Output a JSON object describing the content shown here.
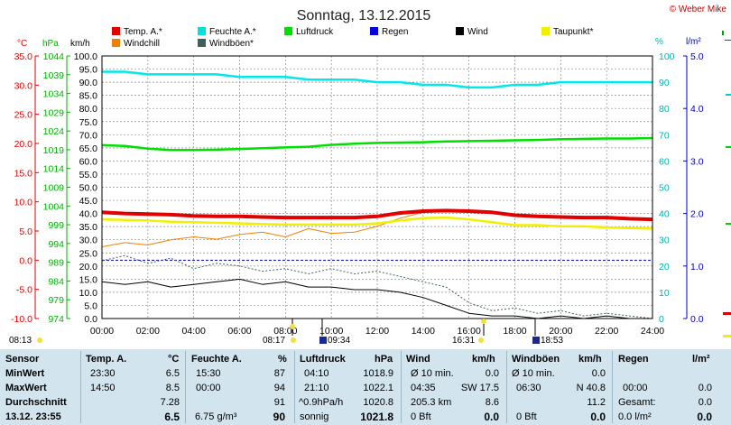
{
  "header": {
    "title": "Sonntag, 13.12.2015",
    "copyright": "© Weber Mike"
  },
  "legend": [
    {
      "label": "Temp. A.*",
      "color": "#e00000"
    },
    {
      "label": "Feuchte A.*",
      "color": "#00e0e0"
    },
    {
      "label": "Luftdruck",
      "color": "#00e000"
    },
    {
      "label": "Regen",
      "color": "#0000e0"
    },
    {
      "label": "Wind",
      "color": "#000000"
    },
    {
      "label": "Taupunkt*",
      "color": "#f0f000"
    },
    {
      "label": "Windchill",
      "color": "#f08000"
    },
    {
      "label": "Windböen*",
      "color": "#406060"
    }
  ],
  "axes": {
    "temp_unit": "°C",
    "press_unit": "hPa",
    "wind_unit": "km/h",
    "hum_unit": "%",
    "rain_unit": "l/m²",
    "temp_ticks": [
      "35.0",
      "30.0",
      "25.0",
      "20.0",
      "15.0",
      "10.0",
      "5.0",
      "0.0",
      "-5.0",
      "-10.0"
    ],
    "press_ticks": [
      "1044",
      "1039",
      "1034",
      "1029",
      "1024",
      "1019",
      "1014",
      "1009",
      "1004",
      "999",
      "994",
      "989",
      "984",
      "979",
      "974"
    ],
    "wind_ticks": [
      "100.0",
      "95.0",
      "90.0",
      "85.0",
      "80.0",
      "75.0",
      "70.0",
      "65.0",
      "60.0",
      "55.0",
      "50.0",
      "45.0",
      "40.0",
      "35.0",
      "30.0",
      "25.0",
      "20.0",
      "15.0",
      "10.0",
      "5.0",
      "0.0"
    ],
    "hum_ticks": [
      "100",
      "90",
      "80",
      "70",
      "60",
      "50",
      "40",
      "30",
      "20",
      "10",
      "0"
    ],
    "rain_ticks": [
      "5.0",
      "4.0",
      "3.0",
      "2.0",
      "1.0",
      "0.0"
    ],
    "time_ticks": [
      "00:00",
      "02:00",
      "04:00",
      "06:00",
      "08:00",
      "10:00",
      "12:00",
      "14:00",
      "16:00",
      "18:00",
      "20:00",
      "22:00",
      "24:00"
    ]
  },
  "sun_moon": {
    "sunrise_prev": "08:13",
    "sunrise": "08:17",
    "moonrise": "09:34",
    "sunset": "16:31",
    "moonset": "18:53"
  },
  "chart_data": {
    "type": "line",
    "title": "Sonntag, 13.12.2015",
    "x_unit": "hours",
    "xlim": [
      0,
      24
    ],
    "wind_ylim": [
      0,
      100
    ],
    "series": [
      {
        "name": "Temp. A.*",
        "axis": "°C",
        "ylim": [
          -10,
          35
        ],
        "x": [
          0,
          1,
          2,
          3,
          4,
          5,
          6,
          7,
          8,
          9,
          10,
          11,
          12,
          13,
          14,
          15,
          16,
          17,
          18,
          19,
          20,
          21,
          22,
          23,
          24
        ],
        "values": [
          8.2,
          8.0,
          7.9,
          7.8,
          7.6,
          7.5,
          7.5,
          7.4,
          7.3,
          7.3,
          7.3,
          7.3,
          7.5,
          8.1,
          8.4,
          8.5,
          8.4,
          8.2,
          7.7,
          7.5,
          7.4,
          7.3,
          7.3,
          7.1,
          7.0
        ]
      },
      {
        "name": "Feuchte A.*",
        "axis": "%",
        "ylim": [
          0,
          100
        ],
        "x": [
          0,
          1,
          2,
          3,
          4,
          5,
          6,
          7,
          8,
          9,
          10,
          11,
          12,
          13,
          14,
          15,
          16,
          17,
          18,
          19,
          20,
          21,
          22,
          23,
          24
        ],
        "values": [
          94,
          94,
          93,
          93,
          93,
          93,
          92,
          92,
          92,
          91,
          91,
          91,
          90,
          90,
          89,
          89,
          88,
          88,
          89,
          89,
          90,
          90,
          90,
          90,
          90
        ]
      },
      {
        "name": "Luftdruck",
        "axis": "hPa",
        "ylim": [
          974,
          1044
        ],
        "x": [
          0,
          1,
          2,
          3,
          4,
          5,
          6,
          7,
          8,
          9,
          10,
          11,
          12,
          13,
          14,
          15,
          16,
          17,
          18,
          19,
          20,
          21,
          22,
          23,
          24
        ],
        "values": [
          1020.2,
          1020.0,
          1019.3,
          1018.9,
          1018.9,
          1019.0,
          1019.2,
          1019.4,
          1019.6,
          1019.8,
          1020.3,
          1020.6,
          1020.8,
          1020.9,
          1021.0,
          1021.2,
          1021.3,
          1021.4,
          1021.5,
          1021.6,
          1021.8,
          1021.9,
          1022.0,
          1022.0,
          1022.1
        ]
      },
      {
        "name": "Taupunkt*",
        "axis": "°C",
        "ylim": [
          -10,
          35
        ],
        "x": [
          0,
          1,
          2,
          3,
          4,
          5,
          6,
          7,
          8,
          9,
          10,
          11,
          12,
          13,
          14,
          15,
          16,
          17,
          18,
          19,
          20,
          21,
          22,
          23,
          24
        ],
        "values": [
          7.0,
          6.9,
          6.8,
          6.6,
          6.5,
          6.4,
          6.3,
          6.2,
          6.1,
          6.1,
          6.1,
          6.1,
          6.3,
          6.8,
          7.2,
          7.3,
          7.0,
          6.5,
          6.0,
          6.0,
          5.8,
          5.8,
          5.6,
          5.5,
          5.4
        ]
      },
      {
        "name": "Windchill",
        "axis": "°C",
        "ylim": [
          -10,
          35
        ],
        "x": [
          0,
          1,
          2,
          3,
          4,
          5,
          6,
          7,
          8,
          9,
          10,
          11,
          12,
          13,
          14,
          15,
          16
        ],
        "values": [
          2.3,
          3.0,
          2.6,
          3.5,
          4.0,
          3.6,
          4.4,
          4.8,
          4.0,
          5.4,
          4.6,
          4.8,
          5.8,
          7.2,
          8.2,
          8.5,
          8.4
        ]
      },
      {
        "name": "Wind",
        "axis": "km/h",
        "ylim": [
          0,
          100
        ],
        "x": [
          0,
          1,
          2,
          3,
          4,
          5,
          6,
          7,
          8,
          9,
          10,
          11,
          12,
          13,
          14,
          15,
          16,
          17,
          18,
          19,
          20,
          21,
          22,
          23,
          24
        ],
        "values": [
          14,
          13,
          14,
          12,
          13,
          14,
          15,
          13,
          14,
          12,
          12,
          11,
          11,
          10,
          8,
          5,
          2,
          1,
          1,
          0,
          1,
          0,
          1,
          0,
          0
        ]
      },
      {
        "name": "Windböen*",
        "axis": "km/h",
        "ylim": [
          0,
          100
        ],
        "x": [
          0,
          1,
          2,
          3,
          4,
          5,
          6,
          7,
          8,
          9,
          10,
          11,
          12,
          13,
          14,
          15,
          16,
          17,
          18,
          19,
          20,
          21,
          22,
          23,
          24
        ],
        "values": [
          22,
          24,
          21,
          23,
          19,
          21,
          20,
          18,
          19,
          17,
          19,
          17,
          18,
          16,
          14,
          12,
          6,
          3,
          4,
          2,
          3,
          1,
          2,
          1,
          0
        ]
      },
      {
        "name": "Regen",
        "axis": "l/m²",
        "ylim": [
          0,
          5
        ],
        "x": [
          0,
          24
        ],
        "values": [
          0,
          0
        ]
      }
    ]
  },
  "table": {
    "headers": {
      "sensor": "Sensor",
      "temp": "Temp. A.",
      "temp_unit": "°C",
      "hum": "Feuchte A.",
      "hum_unit": "%",
      "press": "Luftdruck",
      "press_unit": "hPa",
      "wind": "Wind",
      "wind_unit": "km/h",
      "gust": "Windböen",
      "gust_unit": "km/h",
      "rain": "Regen",
      "rain_unit": "l/m²"
    },
    "row_labels": {
      "min": "MinWert",
      "max": "MaxWert",
      "avg": "Durchschnitt",
      "now": "13.12. 23:55"
    },
    "temp": {
      "min_time": "23:30",
      "min_val": "6.5",
      "max_time": "14:50",
      "max_val": "8.5",
      "avg": "7.28",
      "now": "6.5"
    },
    "hum": {
      "min_time": "15:30",
      "min_val": "87",
      "max_time": "00:00",
      "max_val": "94",
      "avg": "91",
      "abs": "6.75 g/m³",
      "now": "90"
    },
    "press": {
      "min_time": "04:10",
      "min_val": "1018.9",
      "max_time": "21:10",
      "max_val": "1022.1",
      "trend": "^0.9hPa/h",
      "avg": "1020.8",
      "forecast": "sonnig",
      "now": "1021.8"
    },
    "wind": {
      "min_label": "Ø 10 min.",
      "min_val": "0.0",
      "max_time": "04:35",
      "max_dir": "SW 17.5",
      "dist": "205.3 km",
      "avg": "8.6",
      "bft": "0 Bft",
      "now": "0.0"
    },
    "gust": {
      "min_label": "Ø 10 min.",
      "min_val": "0.0",
      "max_time": "06:30",
      "max_dir": "N 40.8",
      "avg": "11.2",
      "bft": "0 Bft",
      "now": "0.0"
    },
    "rain": {
      "max_time": "00:00",
      "max_val": "0.0",
      "total_label": "Gesamt:",
      "total_val": "0.0",
      "now": "0.0 l/m²",
      "now_val": "0.0"
    }
  }
}
